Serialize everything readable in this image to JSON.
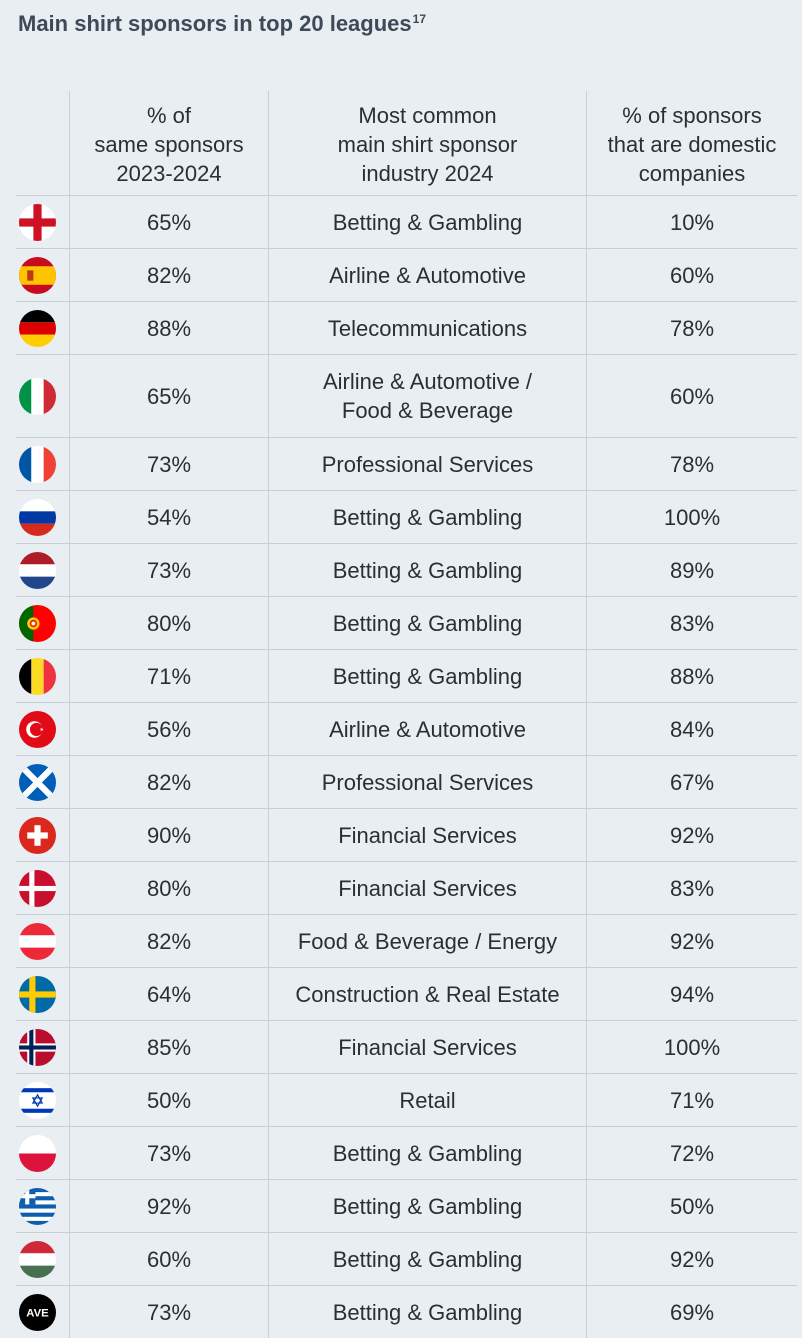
{
  "title": "Main shirt sponsors in top 20 leagues",
  "title_footnote": "17",
  "headers": {
    "col1": [
      "% of",
      "same sponsors",
      "2023-2024"
    ],
    "col2": [
      "Most common",
      "main shirt sponsor",
      "industry 2024"
    ],
    "col3": [
      "% of sponsors",
      "that are domestic",
      "companies"
    ]
  },
  "rows": [
    {
      "flag": "england-flag-icon",
      "same": "65%",
      "industry": [
        "Betting & Gambling"
      ],
      "domestic": "10%"
    },
    {
      "flag": "spain-flag-icon",
      "same": "82%",
      "industry": [
        "Airline & Automotive"
      ],
      "domestic": "60%"
    },
    {
      "flag": "germany-flag-icon",
      "same": "88%",
      "industry": [
        "Telecommunications"
      ],
      "domestic": "78%"
    },
    {
      "flag": "italy-flag-icon",
      "same": "65%",
      "industry": [
        "Airline & Automotive /",
        "Food & Beverage"
      ],
      "domestic": "60%"
    },
    {
      "flag": "france-flag-icon",
      "same": "73%",
      "industry": [
        "Professional Services"
      ],
      "domestic": "78%"
    },
    {
      "flag": "russia-flag-icon",
      "same": "54%",
      "industry": [
        "Betting & Gambling"
      ],
      "domestic": "100%"
    },
    {
      "flag": "netherlands-flag-icon",
      "same": "73%",
      "industry": [
        "Betting & Gambling"
      ],
      "domestic": "89%"
    },
    {
      "flag": "portugal-flag-icon",
      "same": "80%",
      "industry": [
        "Betting & Gambling"
      ],
      "domestic": "83%"
    },
    {
      "flag": "belgium-flag-icon",
      "same": "71%",
      "industry": [
        "Betting & Gambling"
      ],
      "domestic": "88%"
    },
    {
      "flag": "turkey-flag-icon",
      "same": "56%",
      "industry": [
        "Airline & Automotive"
      ],
      "domestic": "84%"
    },
    {
      "flag": "scotland-flag-icon",
      "same": "82%",
      "industry": [
        "Professional Services"
      ],
      "domestic": "67%"
    },
    {
      "flag": "switzerland-flag-icon",
      "same": "90%",
      "industry": [
        "Financial Services"
      ],
      "domestic": "92%"
    },
    {
      "flag": "denmark-flag-icon",
      "same": "80%",
      "industry": [
        "Financial Services"
      ],
      "domestic": "83%"
    },
    {
      "flag": "austria-flag-icon",
      "same": "82%",
      "industry": [
        "Food & Beverage / Energy"
      ],
      "domestic": "92%"
    },
    {
      "flag": "sweden-flag-icon",
      "same": "64%",
      "industry": [
        "Construction & Real Estate"
      ],
      "domestic": "94%"
    },
    {
      "flag": "norway-flag-icon",
      "same": "85%",
      "industry": [
        "Financial Services"
      ],
      "domestic": "100%"
    },
    {
      "flag": "israel-flag-icon",
      "same": "50%",
      "industry": [
        "Retail"
      ],
      "domestic": "71%"
    },
    {
      "flag": "poland-flag-icon",
      "same": "73%",
      "industry": [
        "Betting & Gambling"
      ],
      "domestic": "72%"
    },
    {
      "flag": "greece-flag-icon",
      "same": "92%",
      "industry": [
        "Betting & Gambling"
      ],
      "domestic": "50%"
    },
    {
      "flag": "hungary-flag-icon",
      "same": "60%",
      "industry": [
        "Betting & Gambling"
      ],
      "domestic": "92%"
    },
    {
      "flag": "ave-badge-icon",
      "flag_text": "AVE",
      "same": "73%",
      "industry": [
        "Betting & Gambling"
      ],
      "domestic": "69%"
    }
  ],
  "colors": {
    "background": "#e9eef3",
    "title": "#3e4a57",
    "grid": "#c9cfd5"
  }
}
